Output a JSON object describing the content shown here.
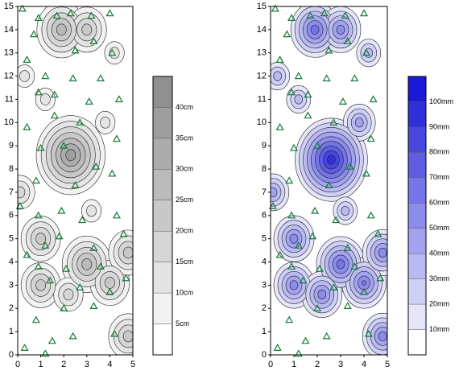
{
  "chart_data": [
    {
      "type": "contour",
      "xlim": [
        0,
        5
      ],
      "ylim": [
        0,
        15
      ],
      "xticks": [
        0,
        1,
        2,
        3,
        4,
        5
      ],
      "yticks": [
        0,
        1,
        2,
        3,
        4,
        5,
        6,
        7,
        8,
        9,
        10,
        11,
        12,
        13,
        14,
        15
      ],
      "points": {
        "x": [
          0.2,
          0.9,
          1.7,
          2.3,
          3.2,
          4,
          0.7,
          2.5,
          3.3,
          4.1,
          0.4,
          1.2,
          2.4,
          3.6,
          0.9,
          1.6,
          3.1,
          4.4,
          1.6,
          0.4,
          2.7,
          4.3,
          1,
          2,
          3.4,
          0.8,
          2.5,
          4.1,
          0.1,
          0.9,
          1.9,
          2.8,
          4.3,
          1.8,
          0.4,
          1.2,
          3.3,
          4.6,
          0.9,
          2.1,
          3.6,
          4.7,
          1.4,
          2.7,
          4,
          2,
          3.3,
          0.8,
          2.4,
          1.5,
          1.2,
          0.3,
          4.2
        ],
        "y": [
          14.9,
          14.5,
          14.6,
          14.7,
          14.6,
          14.7,
          13.8,
          13.1,
          13.5,
          13,
          12.7,
          12,
          11.9,
          11.9,
          11.3,
          11.2,
          10.9,
          11,
          10.3,
          9.8,
          10,
          9.3,
          8.9,
          9,
          8.1,
          7.5,
          7.3,
          7.8,
          6.4,
          6,
          6.2,
          5.8,
          6,
          5.1,
          4.3,
          4.7,
          4.6,
          5.2,
          3.8,
          3.7,
          3.8,
          3.3,
          3.2,
          2.9,
          2.7,
          2,
          2.1,
          1.5,
          0.8,
          0.6,
          0.05,
          0.3,
          0.9
        ]
      },
      "peaks": {
        "x": [
          2.3,
          1.9,
          3,
          3,
          1,
          4,
          1,
          4.8,
          2.2,
          4.8,
          0.1,
          1.2,
          3.8,
          3.2,
          4.2,
          0.3
        ],
        "y": [
          8.6,
          14,
          14,
          3.9,
          3,
          3.1,
          5,
          4.4,
          2.6,
          0.8,
          7,
          11,
          10,
          6.2,
          13,
          12
        ],
        "values": [
          40,
          30,
          25,
          30,
          25,
          25,
          25,
          25,
          20,
          25,
          20,
          15,
          15,
          15,
          15,
          15
        ]
      },
      "colorbar": {
        "lim": [
          0,
          45
        ],
        "ticks": [
          {
            "value": 5,
            "label": "5cm"
          },
          {
            "value": 10,
            "label": "10cm"
          },
          {
            "value": 15,
            "label": "15cm"
          },
          {
            "value": 20,
            "label": "20cm"
          },
          {
            "value": 25,
            "label": "25cm"
          },
          {
            "value": 30,
            "label": "30cm"
          },
          {
            "value": 35,
            "label": "35cm"
          },
          {
            "value": 40,
            "label": "40cm"
          }
        ],
        "levels": [
          0,
          5,
          10,
          15,
          20,
          25,
          30,
          35,
          40
        ],
        "colors": [
          "#ffffff",
          "#f2f2f2",
          "#e4e4e4",
          "#d6d6d6",
          "#c8c8c8",
          "#bababa",
          "#acacac",
          "#9e9e9e",
          "#909090"
        ]
      }
    },
    {
      "type": "contour",
      "xlim": [
        0,
        5
      ],
      "ylim": [
        0,
        15
      ],
      "xticks": [
        0,
        1,
        2,
        3,
        4,
        5
      ],
      "yticks": [
        0,
        1,
        2,
        3,
        4,
        5,
        6,
        7,
        8,
        9,
        10,
        11,
        12,
        13,
        14,
        15
      ],
      "points": {
        "x": [
          0.2,
          0.9,
          1.7,
          2.3,
          3.2,
          4,
          0.7,
          2.5,
          3.3,
          4.1,
          0.4,
          1.2,
          2.4,
          3.6,
          0.9,
          1.6,
          3.1,
          4.4,
          1.6,
          0.4,
          2.7,
          4.3,
          1,
          2,
          3.4,
          0.8,
          2.5,
          4.1,
          0.1,
          0.9,
          1.9,
          2.8,
          4.3,
          1.8,
          0.4,
          1.2,
          3.3,
          4.6,
          0.9,
          2.1,
          3.6,
          4.7,
          1.4,
          2.7,
          4,
          2,
          3.3,
          0.8,
          2.4,
          1.5,
          1.2,
          0.3,
          4.2
        ],
        "y": [
          14.9,
          14.5,
          14.6,
          14.7,
          14.6,
          14.7,
          13.8,
          13.1,
          13.5,
          13,
          12.7,
          12,
          11.9,
          11.9,
          11.3,
          11.2,
          10.9,
          11,
          10.3,
          9.8,
          10,
          9.3,
          8.9,
          9,
          8.1,
          7.5,
          7.3,
          7.8,
          6.4,
          6,
          6.2,
          5.8,
          6,
          5.1,
          4.3,
          4.7,
          4.6,
          5.2,
          3.8,
          3.7,
          3.8,
          3.3,
          3.2,
          2.9,
          2.7,
          2,
          2.1,
          1.5,
          0.8,
          0.6,
          0.05,
          0.3,
          0.9
        ]
      },
      "peaks": {
        "x": [
          2.6,
          1.9,
          3,
          3,
          1,
          4,
          1,
          4.8,
          2.2,
          4.8,
          0.1,
          1.2,
          3.8,
          3.2,
          4.2,
          0.3
        ],
        "y": [
          8.4,
          14,
          14,
          3.9,
          3,
          3.1,
          5,
          4.4,
          2.6,
          0.8,
          7,
          11,
          10,
          6.2,
          13,
          12
        ],
        "values": [
          100,
          70,
          60,
          70,
          60,
          65,
          60,
          60,
          60,
          60,
          50,
          40,
          50,
          40,
          40,
          40
        ]
      },
      "colorbar": {
        "lim": [
          0,
          110
        ],
        "ticks": [
          {
            "value": 10,
            "label": "10mm"
          },
          {
            "value": 20,
            "label": "20mm"
          },
          {
            "value": 30,
            "label": "30mm"
          },
          {
            "value": 40,
            "label": "40mm"
          },
          {
            "value": 50,
            "label": "50mm"
          },
          {
            "value": 60,
            "label": "60mm"
          },
          {
            "value": 70,
            "label": "70mm"
          },
          {
            "value": 80,
            "label": "80mm"
          },
          {
            "value": 90,
            "label": "90mm"
          },
          {
            "value": 100,
            "label": "100mm"
          }
        ],
        "levels": [
          0,
          10,
          20,
          30,
          40,
          50,
          60,
          70,
          80,
          90,
          100
        ],
        "colors": [
          "#ffffff",
          "#e6e6fb",
          "#d0d0f7",
          "#babaf3",
          "#a3a3ef",
          "#8c8ceb",
          "#7575e7",
          "#5e5ee3",
          "#4747df",
          "#3030db",
          "#1919d7"
        ]
      }
    }
  ]
}
